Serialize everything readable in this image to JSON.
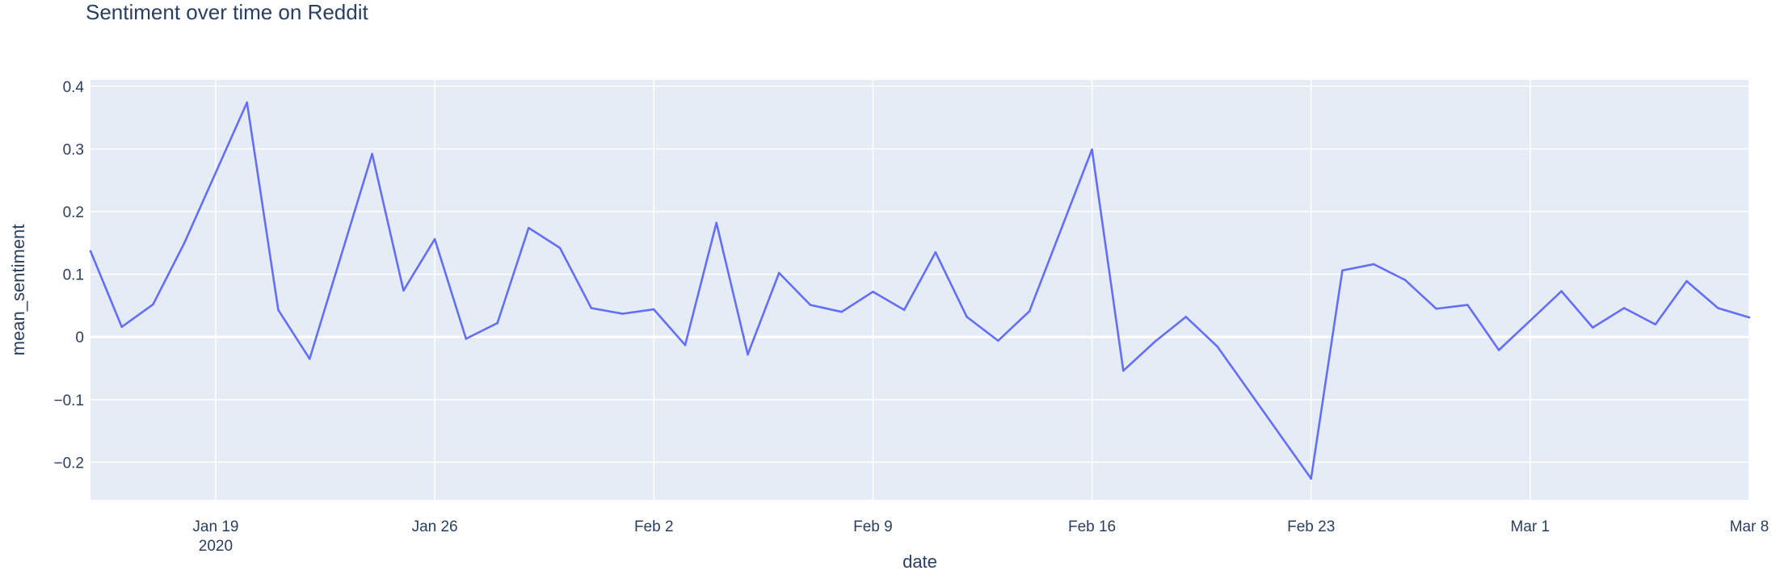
{
  "chart_data": {
    "type": "line",
    "title": "Sentiment over time on Reddit",
    "xlabel": "date",
    "ylabel": "mean_sentiment",
    "xlim": [
      "2020-01-15",
      "2020-03-08"
    ],
    "ylim": [
      -0.26,
      0.41
    ],
    "grid": true,
    "x_ticks": [
      {
        "date": "2020-01-19",
        "label": "Jan 19",
        "sublabel": "2020"
      },
      {
        "date": "2020-01-26",
        "label": "Jan 26"
      },
      {
        "date": "2020-02-02",
        "label": "Feb 2"
      },
      {
        "date": "2020-02-09",
        "label": "Feb 9"
      },
      {
        "date": "2020-02-16",
        "label": "Feb 16"
      },
      {
        "date": "2020-02-23",
        "label": "Feb 23"
      },
      {
        "date": "2020-03-01",
        "label": "Mar 1"
      },
      {
        "date": "2020-03-08",
        "label": "Mar 8"
      }
    ],
    "y_ticks": [
      {
        "value": -0.2,
        "label": "−0.2"
      },
      {
        "value": -0.1,
        "label": "−0.1"
      },
      {
        "value": 0,
        "label": "0"
      },
      {
        "value": 0.1,
        "label": "0.1"
      },
      {
        "value": 0.2,
        "label": "0.2"
      },
      {
        "value": 0.3,
        "label": "0.3"
      },
      {
        "value": 0.4,
        "label": "0.4"
      }
    ],
    "series": [
      {
        "color": "#636efa",
        "x": [
          "2020-01-15",
          "2020-01-16",
          "2020-01-17",
          "2020-01-18",
          "2020-01-20",
          "2020-01-21",
          "2020-01-22",
          "2020-01-24",
          "2020-01-25",
          "2020-01-26",
          "2020-01-27",
          "2020-01-28",
          "2020-01-29",
          "2020-01-30",
          "2020-01-31",
          "2020-02-01",
          "2020-02-02",
          "2020-02-03",
          "2020-02-04",
          "2020-02-05",
          "2020-02-06",
          "2020-02-07",
          "2020-02-08",
          "2020-02-09",
          "2020-02-10",
          "2020-02-11",
          "2020-02-12",
          "2020-02-13",
          "2020-02-14",
          "2020-02-16",
          "2020-02-17",
          "2020-02-18",
          "2020-02-19",
          "2020-02-20",
          "2020-02-23",
          "2020-02-24",
          "2020-02-25",
          "2020-02-26",
          "2020-02-27",
          "2020-02-28",
          "2020-02-29",
          "2020-03-02",
          "2020-03-03",
          "2020-03-04",
          "2020-03-05",
          "2020-03-06",
          "2020-03-07",
          "2020-03-08"
        ],
        "y": [
          0.137,
          0.016,
          0.052,
          0.15,
          0.374,
          0.043,
          -0.035,
          0.292,
          0.074,
          0.156,
          -0.003,
          0.022,
          0.174,
          0.142,
          0.046,
          0.037,
          0.044,
          -0.013,
          0.182,
          -0.028,
          0.102,
          0.051,
          0.04,
          0.072,
          0.043,
          0.135,
          0.032,
          -0.006,
          0.041,
          0.299,
          -0.054,
          -0.008,
          0.032,
          -0.015,
          -0.226,
          0.106,
          0.116,
          0.091,
          0.045,
          0.051,
          -0.021,
          0.073,
          0.015,
          0.046,
          0.02,
          0.089,
          0.046,
          0.031
        ]
      }
    ]
  }
}
